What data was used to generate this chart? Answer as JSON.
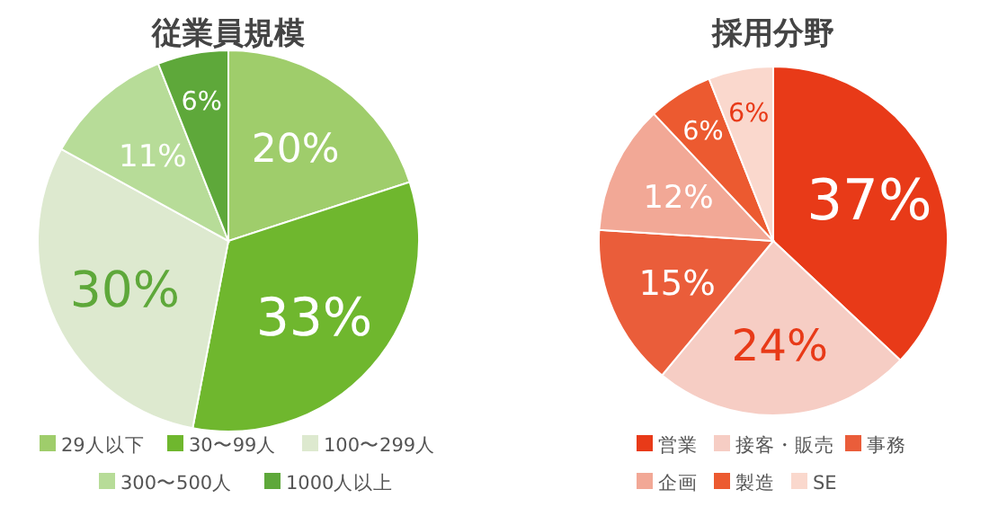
{
  "chart_data": [
    {
      "type": "pie",
      "title": "従業員規模",
      "categories": [
        "29人以下",
        "30〜99人",
        "100〜299人",
        "300〜500人",
        "1000人以上"
      ],
      "values": [
        20,
        33,
        30,
        11,
        6
      ],
      "colors": [
        "#9fcd6b",
        "#6fb72e",
        "#dde9cf",
        "#b7dc98",
        "#5ea83a"
      ],
      "value_labels": [
        "20%",
        "33%",
        "30%",
        "11%",
        "6%"
      ],
      "legend": "bottom"
    },
    {
      "type": "pie",
      "title": "採用分野",
      "categories": [
        "営業",
        "接客・販売",
        "事務",
        "企画",
        "製造",
        "SE"
      ],
      "values": [
        37,
        24,
        15,
        12,
        6,
        6
      ],
      "colors": [
        "#e83a18",
        "#f6cdc4",
        "#ea5d3a",
        "#f2a896",
        "#ec5a30",
        "#fad8cd"
      ],
      "value_labels": [
        "37%",
        "24%",
        "15%",
        "12%",
        "6%",
        "6%"
      ],
      "legend": "bottom"
    }
  ]
}
